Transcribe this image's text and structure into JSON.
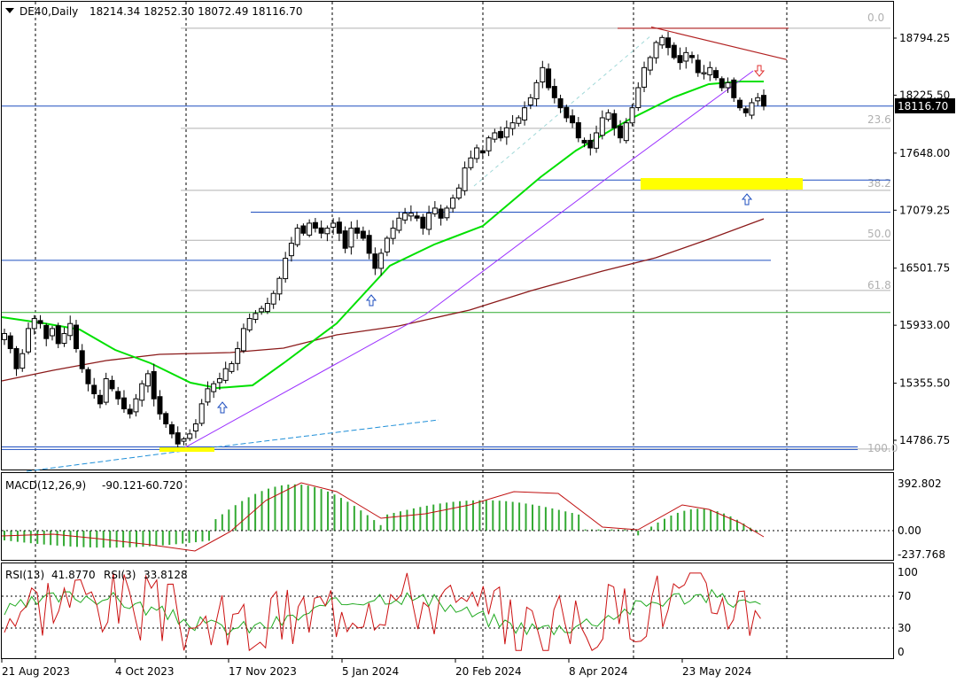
{
  "header": {
    "symbol": "DE40,Daily",
    "ohlc": "18214.34 18252.30 18072.49 18116.70"
  },
  "price_badge": "18116.70",
  "macd": {
    "label": "MACD(12,26,9)",
    "v1": "-90.121",
    "v2": "-60.720"
  },
  "rsi": {
    "label1": "RSI(13)",
    "v1": "41.8770",
    "label2": "RSI(3)",
    "v2": "33.8128"
  },
  "fib_levels": [
    "0.0",
    "23.6",
    "38.2",
    "50.0",
    "61.8",
    "100.0"
  ],
  "colors": {
    "price_up": "#000000",
    "ma50": "#00e000",
    "ma200": "#8b1a1a",
    "trend_purple": "#9b30ff",
    "highlight": "#ffff00",
    "hline_blue": "#1f4fbf",
    "hline_green": "#2eaa2e",
    "fib_gray": "#b0b0b0",
    "arrow_blue": "#1f4fbf",
    "arrow_red": "#e03030"
  },
  "chart_data": [
    {
      "type": "candlestick",
      "title": "DE40,Daily",
      "x_ticks": [
        "21 Aug 2023",
        "4 Oct 2023",
        "17 Nov 2023",
        "5 Jan 2024",
        "20 Feb 2024",
        "8 Apr 2024",
        "23 May 2024"
      ],
      "y_ticks": [
        18794.25,
        18225.5,
        17648.0,
        17079.25,
        16501.75,
        15933.0,
        15355.5,
        14786.75
      ],
      "y_tick_labels": [
        "18794.25",
        "18225.50",
        "17648.00",
        "17079.25",
        "16501.75",
        "15933.00",
        "15355.50",
        "14786.75"
      ],
      "ylim": [
        14660,
        18990
      ],
      "last_close": 18116.7,
      "fibonacci": [
        {
          "level": "0.0",
          "price": 18892
        },
        {
          "level": "23.6",
          "price": 17895
        },
        {
          "level": "38.2",
          "price": 17277
        },
        {
          "level": "50.0",
          "price": 16780
        },
        {
          "level": "61.8",
          "price": 16280
        },
        {
          "level": "100.0",
          "price": 14700
        }
      ],
      "close_series": [
        15850,
        15700,
        15500,
        15650,
        15900,
        16000,
        15950,
        15800,
        15900,
        15750,
        15850,
        15950,
        15700,
        15500,
        15350,
        15250,
        15150,
        15400,
        15300,
        15200,
        15100,
        15050,
        15200,
        15350,
        15450,
        15200,
        15050,
        14950,
        14850,
        14750,
        14800,
        14850,
        14950,
        15150,
        15300,
        15350,
        15400,
        15500,
        15550,
        15700,
        15900,
        16000,
        16050,
        16100,
        16150,
        16250,
        16400,
        16600,
        16750,
        16900,
        16850,
        16950,
        16900,
        16850,
        16900,
        16950,
        16850,
        16700,
        16900,
        16850,
        16800,
        16650,
        16500,
        16650,
        16800,
        16900,
        17000,
        17050,
        17050,
        17000,
        16900,
        17050,
        17100,
        17000,
        17100,
        17200,
        17300,
        17500,
        17600,
        17700,
        17650,
        17800,
        17850,
        17800,
        17900,
        17950,
        18000,
        18100,
        18200,
        18350,
        18500,
        18300,
        18200,
        18100,
        18000,
        17950,
        17800,
        17750,
        17700,
        17850,
        18000,
        18050,
        17900,
        17800,
        17950,
        18100,
        18300,
        18500,
        18600,
        18750,
        18800,
        18700,
        18600,
        18550,
        18650,
        18600,
        18450,
        18450,
        18500,
        18400,
        18300,
        18350,
        18200,
        18100,
        18050,
        18150,
        18200,
        18116.7
      ]
    },
    {
      "type": "line",
      "title": "MACD(12,26,9)",
      "last_values": {
        "macd": -90.121,
        "signal": -60.72
      },
      "y_ticks": [
        392.802,
        0.0,
        -237.768
      ],
      "y_tick_labels": [
        "392.802",
        "0.00",
        "-237.768"
      ]
    },
    {
      "type": "line",
      "title": "RSI(13) RSI(3)",
      "last_values": {
        "rsi13": 41.877,
        "rsi3": 33.8128
      },
      "ylim": [
        0,
        100
      ],
      "y_ticks": [
        100,
        70,
        30,
        0
      ],
      "y_tick_labels": [
        "100",
        "70",
        "30",
        "0"
      ]
    }
  ]
}
